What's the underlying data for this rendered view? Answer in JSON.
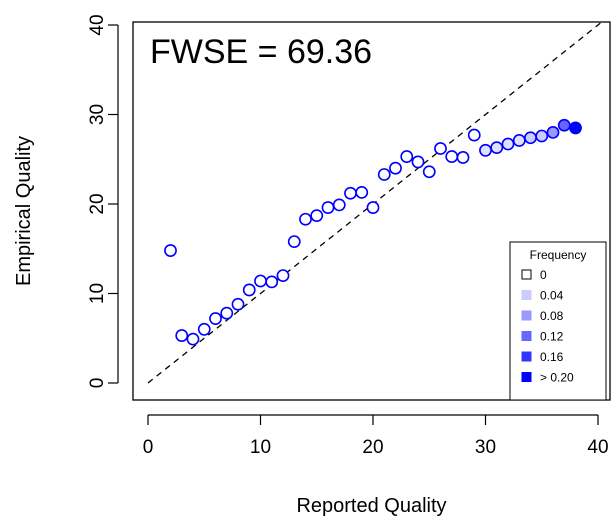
{
  "chart_data": {
    "type": "scatter",
    "title": "",
    "xlabel": "Reported Quality",
    "ylabel": "Empirical Quality",
    "xlim": [
      0,
      40
    ],
    "ylim": [
      0,
      40
    ],
    "x_ticks": [
      0,
      10,
      20,
      30,
      40
    ],
    "y_ticks": [
      0,
      10,
      20,
      30,
      40
    ],
    "annotation": "FWSE = 69.36",
    "reference_line": {
      "type": "identity",
      "style": "dashed"
    },
    "legend": {
      "title": "Frequency",
      "placement": "bottom-right",
      "entries": [
        "0",
        "0.04",
        "0.08",
        "0.12",
        "0.16",
        "> 0.20"
      ],
      "colors": [
        "#ffffff",
        "#ccccff",
        "#9999ff",
        "#6666ff",
        "#3333ff",
        "#0000ff"
      ]
    },
    "marker_edge_color": "#0000ff",
    "points": [
      {
        "x": 2,
        "y": 14.8,
        "frequency": 0
      },
      {
        "x": 3,
        "y": 5.3,
        "frequency": 0
      },
      {
        "x": 4,
        "y": 4.9,
        "frequency": 0
      },
      {
        "x": 5,
        "y": 6.0,
        "frequency": 0
      },
      {
        "x": 6,
        "y": 7.2,
        "frequency": 0
      },
      {
        "x": 7,
        "y": 7.8,
        "frequency": 0
      },
      {
        "x": 8,
        "y": 8.8,
        "frequency": 0
      },
      {
        "x": 9,
        "y": 10.4,
        "frequency": 0
      },
      {
        "x": 10,
        "y": 11.4,
        "frequency": 0
      },
      {
        "x": 11,
        "y": 11.3,
        "frequency": 0
      },
      {
        "x": 12,
        "y": 12.0,
        "frequency": 0
      },
      {
        "x": 13,
        "y": 15.8,
        "frequency": 0
      },
      {
        "x": 14,
        "y": 18.3,
        "frequency": 0
      },
      {
        "x": 15,
        "y": 18.7,
        "frequency": 0
      },
      {
        "x": 16,
        "y": 19.6,
        "frequency": 0
      },
      {
        "x": 17,
        "y": 19.9,
        "frequency": 0
      },
      {
        "x": 18,
        "y": 21.2,
        "frequency": 0
      },
      {
        "x": 19,
        "y": 21.3,
        "frequency": 0
      },
      {
        "x": 20,
        "y": 19.6,
        "frequency": 0
      },
      {
        "x": 21,
        "y": 23.3,
        "frequency": 0
      },
      {
        "x": 22,
        "y": 24.0,
        "frequency": 0
      },
      {
        "x": 23,
        "y": 25.3,
        "frequency": 0
      },
      {
        "x": 24,
        "y": 24.7,
        "frequency": 0
      },
      {
        "x": 25,
        "y": 23.6,
        "frequency": 0
      },
      {
        "x": 26,
        "y": 26.2,
        "frequency": 0
      },
      {
        "x": 27,
        "y": 25.3,
        "frequency": 0
      },
      {
        "x": 28,
        "y": 25.2,
        "frequency": 0
      },
      {
        "x": 29,
        "y": 27.7,
        "frequency": 0
      },
      {
        "x": 30,
        "y": 26.0,
        "frequency": 0.01
      },
      {
        "x": 31,
        "y": 26.3,
        "frequency": 0.02
      },
      {
        "x": 32,
        "y": 26.7,
        "frequency": 0.02
      },
      {
        "x": 33,
        "y": 27.1,
        "frequency": 0.03
      },
      {
        "x": 34,
        "y": 27.4,
        "frequency": 0.04
      },
      {
        "x": 35,
        "y": 27.6,
        "frequency": 0.05
      },
      {
        "x": 36,
        "y": 28.0,
        "frequency": 0.1
      },
      {
        "x": 37,
        "y": 28.8,
        "frequency": 0.12
      },
      {
        "x": 38,
        "y": 28.5,
        "frequency": 0.25
      }
    ]
  }
}
